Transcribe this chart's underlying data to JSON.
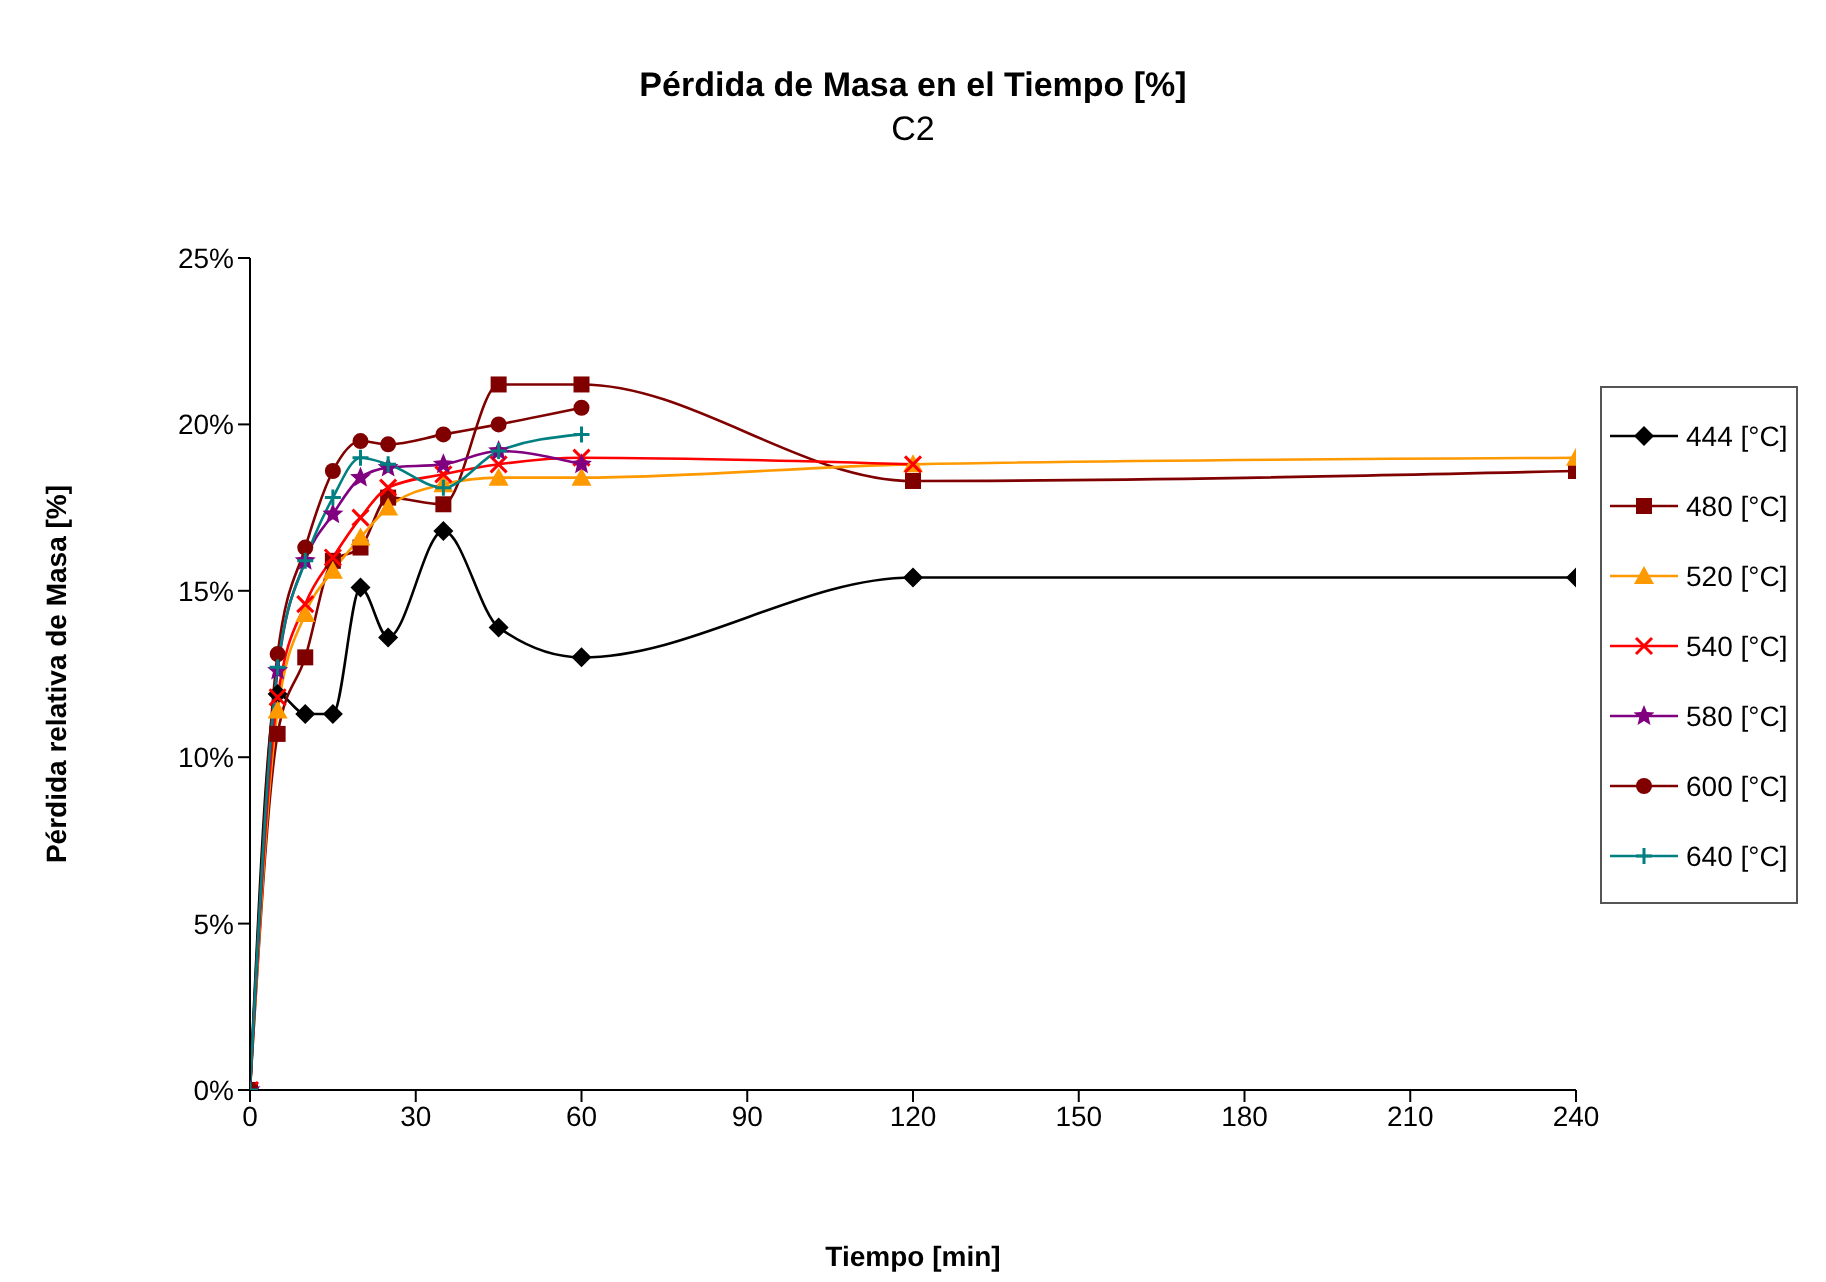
{
  "chart_data": {
    "type": "line",
    "title": "Pérdida de Masa en el Tiempo [%]",
    "subtitle": "C2",
    "xlabel": "Tiempo [min]",
    "ylabel": "Pérdida relativa de Masa [%]",
    "xlim": [
      0,
      240
    ],
    "xticks": [
      0,
      30,
      60,
      90,
      120,
      150,
      180,
      210,
      240
    ],
    "ylim": [
      0,
      25
    ],
    "yticks": [
      {
        "value": 0,
        "label": "0%"
      },
      {
        "value": 5,
        "label": "5%"
      },
      {
        "value": 10,
        "label": "10%"
      },
      {
        "value": 15,
        "label": "15%"
      },
      {
        "value": 20,
        "label": "20%"
      },
      {
        "value": 25,
        "label": "25%"
      }
    ],
    "legend": "right",
    "series": [
      {
        "name": "444 [°C]",
        "color": "#000000",
        "marker": "diamond",
        "x": [
          0,
          5,
          10,
          15,
          20,
          25,
          35,
          45,
          60,
          120,
          240
        ],
        "values": [
          0,
          11.9,
          11.3,
          11.3,
          15.1,
          13.6,
          16.8,
          13.9,
          13.0,
          15.4,
          15.4
        ]
      },
      {
        "name": "480 [°C]",
        "color": "#800000",
        "marker": "square",
        "x": [
          0,
          5,
          10,
          15,
          20,
          25,
          35,
          45,
          60,
          120,
          240
        ],
        "values": [
          0,
          10.7,
          13.0,
          15.9,
          16.3,
          17.8,
          17.6,
          21.2,
          21.2,
          18.3,
          18.6
        ]
      },
      {
        "name": "520 [°C]",
        "color": "#ff9900",
        "marker": "triangle",
        "x": [
          0,
          5,
          10,
          15,
          20,
          25,
          35,
          45,
          60,
          120,
          240
        ],
        "values": [
          0,
          11.4,
          14.3,
          15.6,
          16.6,
          17.5,
          18.2,
          18.4,
          18.4,
          18.8,
          19.0
        ]
      },
      {
        "name": "540 [°C]",
        "color": "#ff0000",
        "marker": "cross",
        "x": [
          0,
          5,
          10,
          15,
          20,
          25,
          35,
          45,
          60,
          120
        ],
        "values": [
          0,
          11.8,
          14.6,
          16.0,
          17.2,
          18.1,
          18.5,
          18.8,
          19.0,
          18.8
        ]
      },
      {
        "name": "580 [°C]",
        "color": "#800080",
        "marker": "star",
        "x": [
          0,
          5,
          10,
          15,
          20,
          25,
          35,
          45,
          60
        ],
        "values": [
          0,
          12.6,
          15.9,
          17.3,
          18.4,
          18.7,
          18.8,
          19.2,
          18.8
        ]
      },
      {
        "name": "600 [°C]",
        "color": "#800000",
        "marker": "circle",
        "x": [
          0,
          5,
          10,
          15,
          20,
          25,
          35,
          45,
          60
        ],
        "values": [
          0,
          13.1,
          16.3,
          18.6,
          19.5,
          19.4,
          19.7,
          20.0,
          20.5
        ]
      },
      {
        "name": "640 [°C]",
        "color": "#008080",
        "marker": "plus",
        "x": [
          0,
          5,
          10,
          15,
          20,
          25,
          35,
          45,
          60
        ],
        "values": [
          0,
          12.7,
          15.9,
          17.8,
          19.0,
          18.8,
          18.1,
          19.2,
          19.7
        ]
      }
    ]
  }
}
